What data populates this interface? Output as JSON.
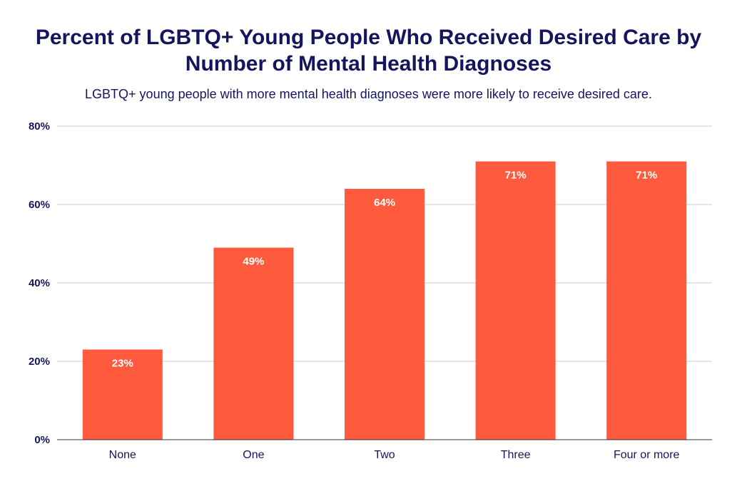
{
  "chart_data": {
    "type": "bar",
    "title": "Percent of LGBTQ+ Young People Who Received Desired Care by Number of Mental Health Diagnoses",
    "subtitle": "LGBTQ+ young people with more mental health diagnoses were more likely to receive desired care.",
    "xlabel": "",
    "ylabel": "",
    "categories": [
      "None",
      "One",
      "Two",
      "Three",
      "Four or more"
    ],
    "values": [
      23,
      49,
      64,
      71,
      71
    ],
    "data_labels": [
      "23%",
      "49%",
      "64%",
      "71%",
      "71%"
    ],
    "ylim": [
      0,
      80
    ],
    "yticks": [
      0,
      20,
      40,
      60,
      80
    ],
    "ytick_labels": [
      "0%",
      "20%",
      "40%",
      "60%",
      "80%"
    ],
    "grid": true,
    "legend": "none",
    "colors": {
      "bar": "#ff5a3d",
      "text": "#15155e",
      "grid": "#cccccc",
      "axis": "#333333",
      "data_label": "#ffffff"
    }
  }
}
